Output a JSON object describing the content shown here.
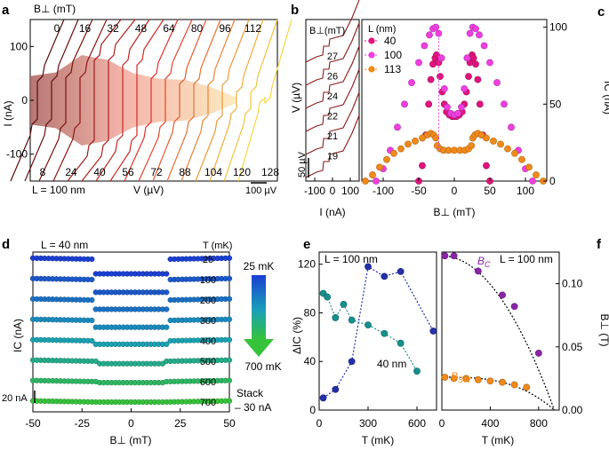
{
  "chart_data": [
    {
      "panel": "a",
      "type": "line",
      "title": "",
      "top_label": "B⊥ (mT)",
      "field_values": [
        "0",
        "16",
        "32",
        "48",
        "64",
        "80",
        "96",
        "112"
      ],
      "bottom_values": [
        "8",
        "24",
        "40",
        "56",
        "72",
        "88",
        "104",
        "120",
        "128"
      ],
      "annotation": "L = 100 nm",
      "xlabel": "V (µV)",
      "ylabel": "I (nA)",
      "ylim": [
        -150,
        150
      ],
      "yticks": [
        "100",
        "0",
        "-100"
      ],
      "ytick_values": [
        100,
        0,
        -100
      ],
      "scalebar": "100 µV",
      "curve_count": 17,
      "ic_band_nA": [
        [
          0,
          45
        ],
        [
          16,
          52
        ],
        [
          32,
          84
        ],
        [
          48,
          75
        ],
        [
          64,
          50
        ],
        [
          80,
          40
        ],
        [
          96,
          38
        ],
        [
          112,
          25
        ],
        [
          128,
          5
        ]
      ]
    },
    {
      "panel": "b",
      "type": "line",
      "legend_title": "B⊥(mT)",
      "field_values": [
        "27",
        "26",
        "24",
        "22",
        "21",
        "19"
      ],
      "xlabel": "I (nA)",
      "ylabel": "V (µV)",
      "xticks": [
        "-100",
        "0",
        "100"
      ],
      "xtick_values": [
        -100,
        0,
        100
      ],
      "xlim": [
        -150,
        150
      ],
      "scalebar": "50 µV"
    },
    {
      "panel": "c",
      "type": "scatter",
      "legend_title": "L (nm)",
      "xlabel": "B⊥ (mT)",
      "ylabel": "IC (nA)",
      "xlim": [
        -130,
        130
      ],
      "ylim": [
        0,
        105
      ],
      "xticks": [
        "-100",
        "-50",
        "0",
        "50",
        "100"
      ],
      "xtick_values": [
        -100,
        -50,
        0,
        50,
        100
      ],
      "yticks": [
        "0",
        "50",
        "100"
      ],
      "ytick_values": [
        0,
        50,
        100
      ],
      "series": [
        {
          "name": "40",
          "color": "#e0147c",
          "points": [
            [
              -50,
              0
            ],
            [
              -45,
              10
            ],
            [
              -40,
              30
            ],
            [
              -36,
              50
            ],
            [
              -33,
              66
            ],
            [
              -30,
              76
            ],
            [
              -27,
              80
            ],
            [
              -25,
              82
            ],
            [
              -22,
              77
            ],
            [
              -20,
              68
            ],
            [
              -17,
              58
            ],
            [
              -14,
              50
            ],
            [
              -11,
              45
            ],
            [
              -7,
              43
            ],
            [
              -3,
              42
            ],
            [
              0,
              42
            ],
            [
              3,
              42
            ],
            [
              7,
              43
            ],
            [
              11,
              45
            ],
            [
              14,
              50
            ],
            [
              17,
              58
            ],
            [
              20,
              68
            ],
            [
              22,
              77
            ],
            [
              25,
              82
            ],
            [
              27,
              80
            ],
            [
              30,
              76
            ],
            [
              33,
              66
            ],
            [
              36,
              50
            ],
            [
              40,
              30
            ],
            [
              45,
              10
            ],
            [
              50,
              0
            ]
          ]
        },
        {
          "name": "100",
          "color": "#ef3fe0",
          "points": [
            [
              -110,
              0
            ],
            [
              -100,
              8
            ],
            [
              -90,
              20
            ],
            [
              -80,
              35
            ],
            [
              -70,
              50
            ],
            [
              -60,
              64
            ],
            [
              -50,
              77
            ],
            [
              -42,
              88
            ],
            [
              -35,
              95
            ],
            [
              -30,
              99
            ],
            [
              -26,
              100
            ],
            [
              -22,
              96
            ],
            [
              -18,
              80
            ],
            [
              -14,
              60
            ],
            [
              -10,
              48
            ],
            [
              -5,
              44
            ],
            [
              0,
              43
            ],
            [
              5,
              44
            ],
            [
              10,
              48
            ],
            [
              14,
              60
            ],
            [
              18,
              80
            ],
            [
              22,
              96
            ],
            [
              26,
              100
            ],
            [
              30,
              99
            ],
            [
              35,
              95
            ],
            [
              42,
              88
            ],
            [
              50,
              77
            ],
            [
              60,
              64
            ],
            [
              70,
              50
            ],
            [
              80,
              35
            ],
            [
              90,
              20
            ],
            [
              100,
              8
            ],
            [
              110,
              0
            ]
          ]
        },
        {
          "name": "113",
          "color": "#f08a1a",
          "points": [
            [
              -125,
              0
            ],
            [
              -115,
              4
            ],
            [
              -105,
              9
            ],
            [
              -95,
              14
            ],
            [
              -85,
              18
            ],
            [
              -75,
              21
            ],
            [
              -65,
              24
            ],
            [
              -55,
              26
            ],
            [
              -45,
              28
            ],
            [
              -38,
              30
            ],
            [
              -33,
              31
            ],
            [
              -29,
              30
            ],
            [
              -26,
              28
            ],
            [
              -24,
              23
            ],
            [
              -20,
              21
            ],
            [
              -15,
              20
            ],
            [
              -8,
              20
            ],
            [
              0,
              20
            ],
            [
              8,
              20
            ],
            [
              15,
              20
            ],
            [
              20,
              21
            ],
            [
              24,
              23
            ],
            [
              26,
              28
            ],
            [
              29,
              30
            ],
            [
              33,
              31
            ],
            [
              38,
              30
            ],
            [
              45,
              28
            ],
            [
              55,
              26
            ],
            [
              65,
              24
            ],
            [
              75,
              21
            ],
            [
              85,
              18
            ],
            [
              95,
              14
            ],
            [
              105,
              9
            ],
            [
              115,
              4
            ],
            [
              125,
              0
            ]
          ]
        }
      ]
    },
    {
      "panel": "d",
      "type": "scatter",
      "annotation": "L = 40 nm",
      "legend_title": "T (mK)",
      "xlabel": "B⊥ (mT)",
      "ylabel": "IC (nA)",
      "xlim": [
        -50,
        50
      ],
      "xticks": [
        "-50",
        "-25",
        "0",
        "25",
        "50"
      ],
      "xtick_values": [
        -50,
        -25,
        0,
        25,
        50
      ],
      "scalebar": "20 nA",
      "stack_note": "Stack",
      "stack_offset": "– 30 nA",
      "colorbar_top": "25 mK",
      "colorbar_bottom": "700 mK",
      "series": [
        {
          "name": "25",
          "high": 120,
          "low": 90,
          "step": 20
        },
        {
          "name": "100",
          "high": 117,
          "low": 91,
          "step": 20
        },
        {
          "name": "200",
          "high": 112,
          "low": 93,
          "step": 20
        },
        {
          "name": "300",
          "high": 108,
          "low": 94,
          "step": 19
        },
        {
          "name": "400",
          "high": 103,
          "low": 96,
          "step": 19
        },
        {
          "name": "500",
          "high": 101,
          "low": 96,
          "step": 18
        },
        {
          "name": "600",
          "high": 98,
          "low": 96,
          "step": 17
        },
        {
          "name": "700",
          "high": 97,
          "low": 97,
          "step": 17
        }
      ]
    },
    {
      "panel": "e",
      "type": "scatter",
      "annotation": "L = 100 nm",
      "note": "40 nm",
      "xlabel": "T (mK)",
      "ylabel": "ΔIC (%)",
      "xlim": [
        0,
        720
      ],
      "ylim": [
        0,
        130
      ],
      "xticks": [
        "0",
        "300",
        "600"
      ],
      "xtick_values": [
        0,
        300,
        600
      ],
      "yticks": [
        "0",
        "40",
        "80",
        "120"
      ],
      "ytick_values": [
        0,
        40,
        80,
        120
      ],
      "series": [
        {
          "name": "100 nm",
          "color": "#2430a8",
          "points": [
            [
              25,
              10
            ],
            [
              100,
              17
            ],
            [
              200,
              40
            ],
            [
              300,
              118
            ],
            [
              400,
              110
            ],
            [
              500,
              114
            ],
            [
              700,
              65
            ]
          ]
        },
        {
          "name": "40 nm",
          "color": "#16908c",
          "points": [
            [
              25,
              96
            ],
            [
              50,
              93
            ],
            [
              100,
              76
            ],
            [
              150,
              87
            ],
            [
              200,
              74
            ],
            [
              300,
              70
            ],
            [
              400,
              63
            ],
            [
              500,
              55
            ],
            [
              600,
              32
            ]
          ]
        }
      ]
    },
    {
      "panel": "f",
      "type": "scatter",
      "annotation": "L = 100 nm",
      "xlabel": "T (mK)",
      "ylabel": "B⊥ (T)",
      "xlim": [
        0,
        970
      ],
      "ylim": [
        0,
        0.125
      ],
      "xticks": [
        "0",
        "400",
        "800"
      ],
      "xtick_values": [
        0,
        400,
        800
      ],
      "yticks": [
        "0.00",
        "0.05",
        "0.10"
      ],
      "ytick_values": [
        0,
        0.05,
        0.1
      ],
      "series": [
        {
          "name": "BC",
          "color": "#8b24a8",
          "points": [
            [
              25,
              0.122
            ],
            [
              100,
              0.122
            ],
            [
              300,
              0.11
            ],
            [
              500,
              0.091
            ],
            [
              600,
              0.082
            ],
            [
              800,
              0.045
            ]
          ]
        },
        {
          "name": "BSW",
          "color": "#f08a1a",
          "points": [
            [
              25,
              0.026
            ],
            [
              100,
              0.025
            ],
            [
              200,
              0.025
            ],
            [
              300,
              0.024
            ],
            [
              400,
              0.023
            ],
            [
              500,
              0.022
            ],
            [
              600,
              0.02
            ],
            [
              700,
              0.018
            ]
          ]
        }
      ]
    }
  ],
  "panel_labels": [
    "a",
    "b",
    "c",
    "d",
    "e",
    "f"
  ],
  "legend_c_title": "L (nm)"
}
